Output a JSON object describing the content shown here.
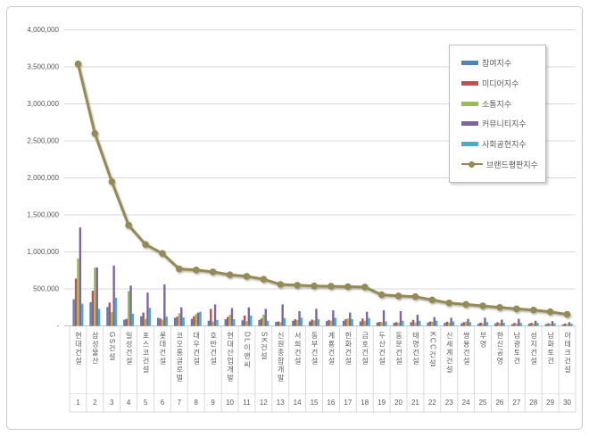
{
  "chart_data": {
    "type": "bar",
    "subtype": "grouped-bars-with-line-overlay",
    "title": "",
    "categories": [
      "현대건설",
      "삼성물산",
      "GS건설",
      "일성건설",
      "포스코건설",
      "롯데건설",
      "코오롱글로벌",
      "대우건설",
      "호반건설",
      "현대산업개발",
      "DL이앤씨",
      "SK건설",
      "신원종합개발",
      "서희건설",
      "동부건설",
      "계룡건설",
      "한화건설",
      "금호건설",
      "두산건설",
      "동문건설",
      "태영건설",
      "KCC건설",
      "신세계건설",
      "쌍용건설",
      "부영",
      "한신공영",
      "남광토건",
      "성지건설",
      "남화토건",
      "이테크건설"
    ],
    "ranks": [
      "1",
      "2",
      "3",
      "4",
      "5",
      "6",
      "7",
      "8",
      "9",
      "10",
      "11",
      "12",
      "13",
      "14",
      "15",
      "16",
      "17",
      "18",
      "19",
      "20",
      "21",
      "22",
      "23",
      "24",
      "25",
      "26",
      "27",
      "28",
      "29",
      "30"
    ],
    "series": [
      {
        "name": "참여지수",
        "type": "bar",
        "color": "#4F81BD",
        "values": [
          360000,
          320000,
          255000,
          85000,
          130000,
          110000,
          110000,
          95000,
          70000,
          90000,
          75000,
          80000,
          55000,
          70000,
          60000,
          65000,
          70000,
          60000,
          45000,
          40000,
          50000,
          45000,
          40000,
          35000,
          30000,
          35000,
          25000,
          30000,
          25000,
          20000
        ]
      },
      {
        "name": "미디어지수",
        "type": "bar",
        "color": "#C0504D",
        "values": [
          640000,
          475000,
          315000,
          95000,
          180000,
          100000,
          125000,
          130000,
          230000,
          120000,
          140000,
          100000,
          60000,
          90000,
          85000,
          80000,
          90000,
          100000,
          55000,
          50000,
          80000,
          60000,
          55000,
          50000,
          45000,
          50000,
          40000,
          40000,
          35000,
          30000
        ]
      },
      {
        "name": "소통지수",
        "type": "bar",
        "color": "#9BBB59",
        "values": [
          910000,
          785000,
          185000,
          470000,
          95000,
          85000,
          170000,
          160000,
          60000,
          150000,
          65000,
          150000,
          50000,
          80000,
          75000,
          70000,
          100000,
          70000,
          50000,
          45000,
          45000,
          55000,
          45000,
          60000,
          35000,
          40000,
          30000,
          35000,
          30000,
          25000
        ]
      },
      {
        "name": "커뮤니티지수",
        "type": "bar",
        "color": "#8064A2",
        "values": [
          1330000,
          790000,
          815000,
          545000,
          450000,
          560000,
          250000,
          180000,
          290000,
          240000,
          250000,
          230000,
          290000,
          200000,
          230000,
          210000,
          180000,
          190000,
          210000,
          200000,
          150000,
          120000,
          110000,
          95000,
          110000,
          85000,
          95000,
          70000,
          65000,
          50000
        ]
      },
      {
        "name": "사회공헌지수",
        "type": "bar",
        "color": "#4BACC6",
        "values": [
          300000,
          230000,
          380000,
          165000,
          245000,
          125000,
          115000,
          190000,
          80000,
          90000,
          140000,
          70000,
          105000,
          110000,
          90000,
          110000,
          90000,
          105000,
          60000,
          70000,
          70000,
          70000,
          60000,
          50000,
          50000,
          40000,
          40000,
          40000,
          35000,
          30000
        ]
      },
      {
        "name": "브랜드평판지수",
        "type": "line",
        "color": "#948A54",
        "values": [
          3540000,
          2600000,
          1950000,
          1360000,
          1100000,
          980000,
          770000,
          755000,
          730000,
          690000,
          670000,
          630000,
          560000,
          550000,
          540000,
          535000,
          530000,
          525000,
          420000,
          405000,
          395000,
          350000,
          310000,
          290000,
          270000,
          250000,
          230000,
          215000,
          190000,
          155000
        ]
      }
    ],
    "y_axis": {
      "min": 0,
      "max": 4000000,
      "step": 500000,
      "tick_labels": [
        "-",
        "500,000",
        "1,000,000",
        "1,500,000",
        "2,000,000",
        "2,500,000",
        "3,000,000",
        "3,500,000",
        "4,000,000"
      ]
    },
    "legend_position": "upper-right",
    "grid": true,
    "colors": {
      "gridline": "#D9D9D9",
      "axis_line": "#BFBFBF",
      "label_text": "#595959",
      "frame_border": "#C9C9C9",
      "background": "#FFFFFF"
    }
  }
}
